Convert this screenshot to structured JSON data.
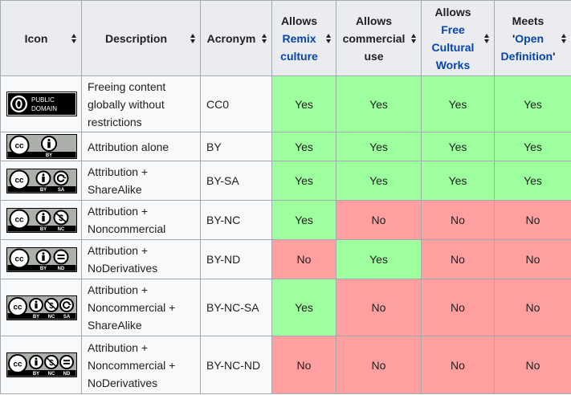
{
  "header": {
    "icon": "Icon",
    "description": "Description",
    "acronym": "Acronym",
    "remix_pre": "Allows",
    "remix_link": "Remix culture",
    "commercial": "Allows commercial use",
    "free_pre": "Allows",
    "free_link": "Free Cultural Works",
    "open_pre": "Meets",
    "open_q1": "'",
    "open_link": "Open Definition",
    "open_q2": "'"
  },
  "rows": [
    {
      "icon": "public-domain-badge",
      "badge_text1": "PUBLIC",
      "badge_text2": "DOMAIN",
      "description": "Freeing content globally without restrictions",
      "acronym": "CC0",
      "remix": "Yes",
      "commercial": "Yes",
      "free": "Yes",
      "open": "Yes"
    },
    {
      "icon": "cc-by-badge",
      "labels": [
        "BY"
      ],
      "description": "Attribution alone",
      "acronym": "BY",
      "remix": "Yes",
      "commercial": "Yes",
      "free": "Yes",
      "open": "Yes"
    },
    {
      "icon": "cc-by-sa-badge",
      "labels": [
        "BY",
        "SA"
      ],
      "description": "Attribution + ShareAlike",
      "acronym": "BY-SA",
      "remix": "Yes",
      "commercial": "Yes",
      "free": "Yes",
      "open": "Yes"
    },
    {
      "icon": "cc-by-nc-badge",
      "labels": [
        "BY",
        "NC"
      ],
      "description": "Attribution + Noncommercial",
      "acronym": "BY-NC",
      "remix": "Yes",
      "commercial": "No",
      "free": "No",
      "open": "No"
    },
    {
      "icon": "cc-by-nd-badge",
      "labels": [
        "BY",
        "ND"
      ],
      "description": "Attribution + NoDerivatives",
      "acronym": "BY-ND",
      "remix": "No",
      "commercial": "Yes",
      "free": "No",
      "open": "No"
    },
    {
      "icon": "cc-by-nc-sa-badge",
      "labels": [
        "BY",
        "NC",
        "SA"
      ],
      "description": "Attribution + Noncommercial + ShareAlike",
      "acronym": "BY-NC-SA",
      "remix": "Yes",
      "commercial": "No",
      "free": "No",
      "open": "No"
    },
    {
      "icon": "cc-by-nc-nd-badge",
      "labels": [
        "BY",
        "NC",
        "ND"
      ],
      "description": "Attribution + Noncommercial + NoDerivatives",
      "acronym": "BY-NC-ND",
      "remix": "No",
      "commercial": "No",
      "free": "No",
      "open": "No"
    }
  ],
  "colors": {
    "yes": "#9eff9e",
    "no": "#ff9f9f",
    "header_bg": "#eaecf0",
    "link": "#0645ad"
  }
}
